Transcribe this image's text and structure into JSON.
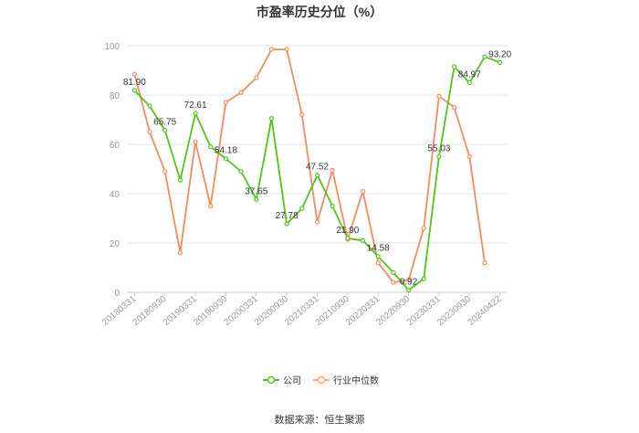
{
  "chart_data": {
    "type": "line",
    "title": "市盈率历史分位（%）",
    "ylim": [
      0,
      100
    ],
    "yticks": [
      0,
      20,
      40,
      60,
      80,
      100
    ],
    "grid": true,
    "legend_position": "bottom",
    "x": [
      "20180331",
      "20180630",
      "20180930",
      "20181231",
      "20190331",
      "20190630",
      "20190930",
      "20191231",
      "20200331",
      "20200630",
      "20200930",
      "20201231",
      "20210331",
      "20210630",
      "20210930",
      "20211231",
      "20220331",
      "20220630",
      "20220930",
      "20221231",
      "20230331",
      "20230630",
      "20230930",
      "20231231",
      "20240422"
    ],
    "xtick_labels": [
      "20180331",
      "20180930",
      "20190331",
      "20190930",
      "20200331",
      "20200930",
      "20210331",
      "20210930",
      "20220331",
      "20220930",
      "20230331",
      "20230930",
      "20240422"
    ],
    "series": [
      {
        "name": "公司",
        "color": "#52c41a",
        "values": [
          81.9,
          75.5,
          65.75,
          45.5,
          72.61,
          59.0,
          54.18,
          49.0,
          37.65,
          70.5,
          27.78,
          34.0,
          47.52,
          35.0,
          21.9,
          21.0,
          14.58,
          8.0,
          0.92,
          5.5,
          55.03,
          91.5,
          84.97,
          95.5,
          93.2
        ],
        "labels": [
          "81.90",
          "",
          "65.75",
          "",
          "72.61",
          "",
          "54.18",
          "",
          "37.65",
          "",
          "27.78",
          "",
          "47.52",
          "",
          "21.90",
          "",
          "14.58",
          "",
          "0.92",
          "",
          "55.03",
          "",
          "84.97",
          "",
          "93.20"
        ]
      },
      {
        "name": "行业中位数",
        "color": "#f28c5e",
        "values": [
          88.5,
          65.0,
          49.0,
          16.0,
          61.0,
          35.0,
          77.0,
          81.0,
          87.0,
          98.5,
          98.5,
          72.0,
          28.5,
          49.5,
          21.5,
          41.0,
          12.0,
          4.0,
          5.0,
          26.0,
          79.5,
          75.0,
          55.0,
          12.0,
          null
        ]
      }
    ]
  },
  "legend": {
    "items": [
      {
        "label": "公司",
        "color": "#52c41a"
      },
      {
        "label": "行业中位数",
        "color": "#f5a887"
      }
    ]
  },
  "source": "数据来源：恒生聚源"
}
